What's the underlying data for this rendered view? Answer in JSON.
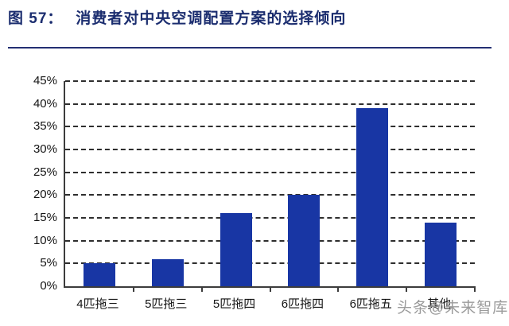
{
  "figure": {
    "title_prefix": "图 57：",
    "title_text": "消费者对中央空调配置方案的选择倾向"
  },
  "watermark": "头条@未来智库",
  "colors": {
    "bar": "#1836A4",
    "title": "#1B2D6F",
    "divider": "#232F73",
    "axis": "#3C3C3C",
    "gridline": "#2E2E2E",
    "tick_label": "#141414",
    "watermark": "#9B9B9B",
    "background": "#FFFFFF"
  },
  "chart_data": {
    "type": "bar",
    "title": "消费者对中央空调配置方案的选择倾向",
    "categories": [
      "4匹拖三",
      "5匹拖三",
      "5匹拖四",
      "6匹拖四",
      "6匹拖五",
      "其他"
    ],
    "values": [
      5,
      6,
      16,
      20,
      39,
      14
    ],
    "unit": "%",
    "xlabel": "",
    "ylabel": "",
    "ylim": [
      0,
      45
    ],
    "ytick_step": 5,
    "ytick_labels": [
      "0%",
      "5%",
      "10%",
      "15%",
      "20%",
      "25%",
      "30%",
      "35%",
      "40%",
      "45%"
    ],
    "grid": "horizontal-dashed",
    "legend": "none"
  }
}
